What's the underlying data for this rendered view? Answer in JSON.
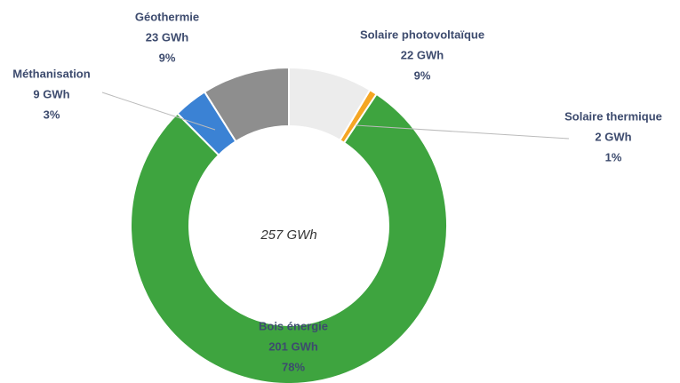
{
  "chart_data": {
    "type": "donut",
    "categories": [
      "Solaire photovoltaïque",
      "Solaire thermique",
      "Bois énergie",
      "Méthanisation",
      "Géothermie"
    ],
    "values": [
      22,
      2,
      201,
      9,
      23
    ],
    "value_labels": [
      "22 GWh",
      "2 GWh",
      "201 GWh",
      "9 GWh",
      "23 GWh"
    ],
    "percent_labels": [
      "9%",
      "1%",
      "78%",
      "3%",
      "9%"
    ],
    "colors": [
      "#ececec",
      "#f5a623",
      "#3ea43f",
      "#3b82d4",
      "#8e8e8e"
    ],
    "center_label": "257 GWh"
  }
}
